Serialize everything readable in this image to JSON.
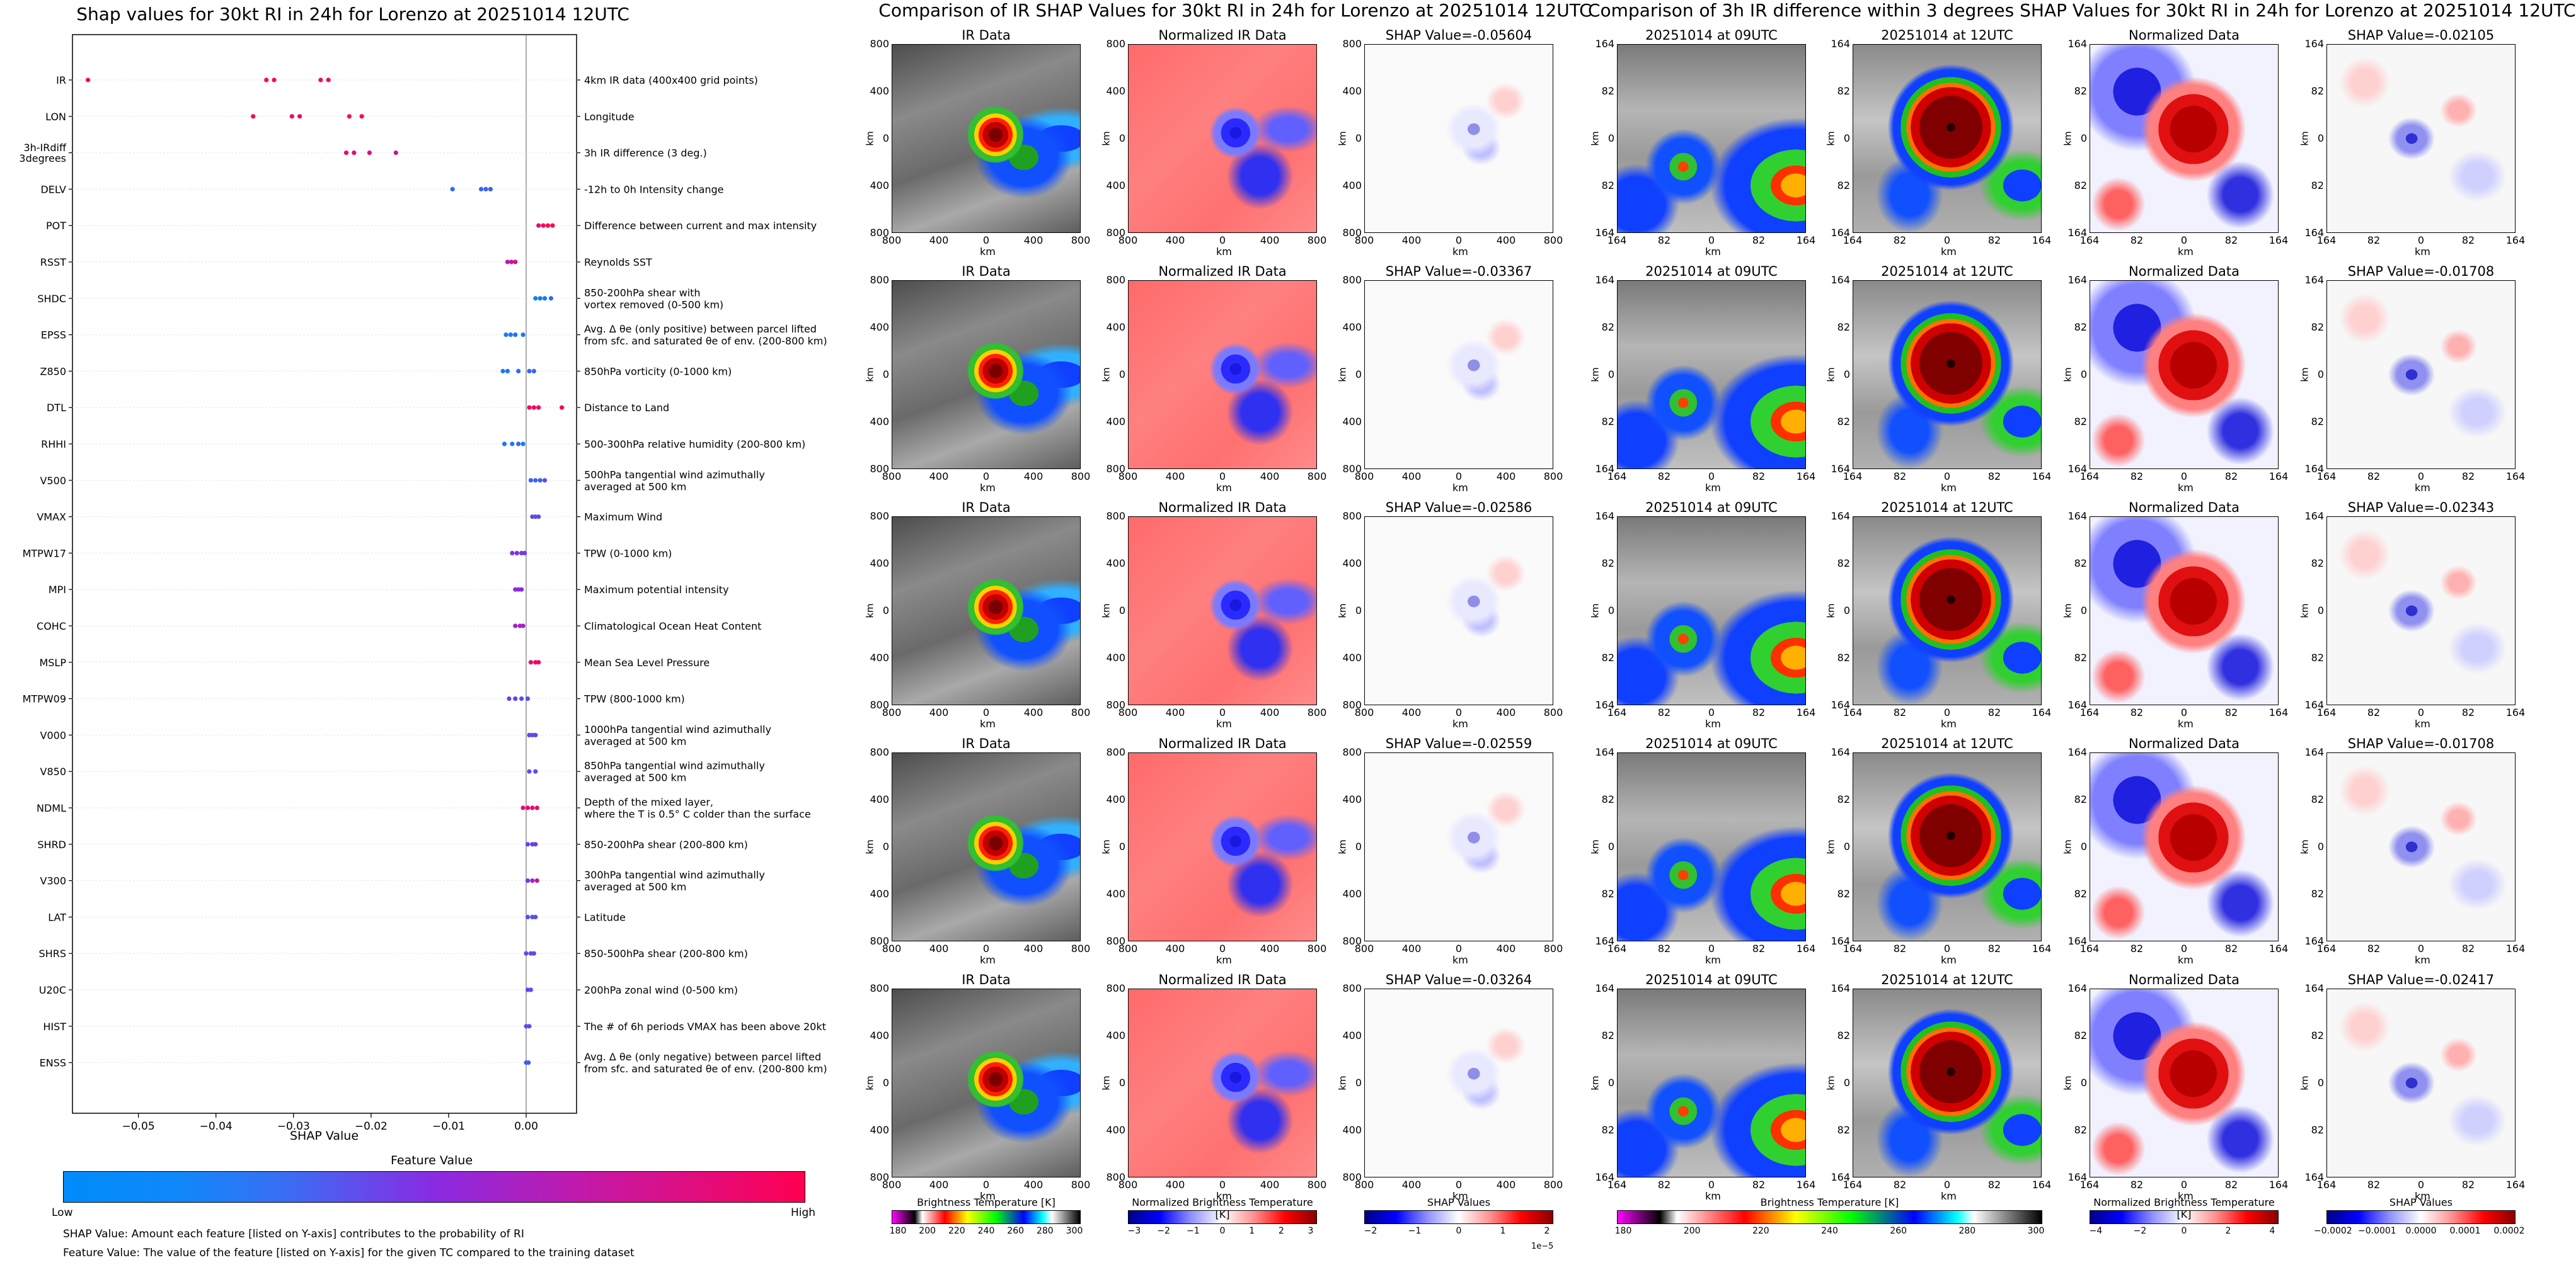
{
  "left": {
    "title": "Shap values for 30kt RI in 24h for Lorenzo at 20251014 12UTC",
    "xlabel": "SHAP Value",
    "x_ticks": [
      "−0.05",
      "−0.04",
      "−0.03",
      "−0.02",
      "−0.01",
      "0.00"
    ],
    "feature_value_title": "Feature Value",
    "low_label": "Low",
    "high_label": "High",
    "note1": "SHAP Value: Amount each feature [listed on Y-axis] contributes to the probability of RI",
    "note2": "Feature Value: The value of the feature [listed on Y-axis] for the given TC compared to the training dataset",
    "colors": {
      "low": "#1e88e5",
      "mid": "#8a2be2",
      "high": "#ff0052"
    }
  },
  "middle": {
    "title": "Comparison of IR SHAP Values for 30kt RI in 24h for Lorenzo at 20251014 12UTC",
    "col_titles": [
      "IR Data",
      "Normalized IR Data"
    ],
    "shap_titles": [
      "SHAP Value=-0.05604",
      "SHAP Value=-0.03367",
      "SHAP Value=-0.02586",
      "SHAP Value=-0.02559",
      "SHAP Value=-0.03264"
    ],
    "y_ticks": [
      "800",
      "400",
      "0",
      "400",
      "800"
    ],
    "x_ticks": [
      "800",
      "400",
      "0",
      "400",
      "800"
    ],
    "axis_label": "km",
    "cbar_labels": [
      "Brightness Temperature [K]",
      "Normalized Brightness Temperature [K]",
      "SHAP Values"
    ],
    "cbar1_ticks": [
      "180",
      "200",
      "220",
      "240",
      "260",
      "280",
      "300"
    ],
    "cbar2_ticks": [
      "−3",
      "−2",
      "−1",
      "0",
      "1",
      "2",
      "3"
    ],
    "cbar3_ticks": [
      "−2",
      "−1",
      "0",
      "1",
      "2"
    ],
    "cbar3_exp": "1e−5"
  },
  "right": {
    "title": "Comparison of 3h IR difference within 3 degrees SHAP Values for 30kt RI in 24h for Lorenzo at 20251014 12UTC",
    "col_titles": [
      "20251014 at 09UTC",
      "20251014 at 12UTC",
      "Normalized Data"
    ],
    "shap_titles": [
      "SHAP Value=-0.02105",
      "SHAP Value=-0.01708",
      "SHAP Value=-0.02343",
      "SHAP Value=-0.01708",
      "SHAP Value=-0.02417"
    ],
    "y_ticks": [
      "164",
      "82",
      "0",
      "82",
      "164"
    ],
    "x_ticks": [
      "164",
      "82",
      "0",
      "82",
      "164"
    ],
    "axis_label": "km",
    "cbar_labels": [
      "Brightness Temperature [K]",
      "Normalized Brightness Temperature [K]",
      "SHAP Values"
    ],
    "cbar1_ticks": [
      "180",
      "200",
      "220",
      "240",
      "260",
      "280",
      "300"
    ],
    "cbar2_ticks": [
      "−4",
      "−2",
      "0",
      "2",
      "4"
    ],
    "cbar3_ticks": [
      "−0.0002",
      "−0.0001",
      "0.0000",
      "0.0001",
      "0.0002"
    ]
  },
  "chart_data": {
    "type": "scatter",
    "title": "Shap values for 30kt RI in 24h for Lorenzo at 20251014 12UTC",
    "xlabel": "SHAP Value",
    "xlim": [
      -0.0585,
      0.0065
    ],
    "features": [
      {
        "name": "IR",
        "desc": "4km IR data (400x400 grid points)",
        "points": [
          [
            -0.0565,
            1.0
          ],
          [
            -0.0335,
            1.0
          ],
          [
            -0.0325,
            1.0
          ],
          [
            -0.0265,
            0.95
          ],
          [
            -0.0255,
            0.95
          ]
        ]
      },
      {
        "name": "LON",
        "desc": "Longitude",
        "points": [
          [
            -0.0352,
            1.0
          ],
          [
            -0.0302,
            0.95
          ],
          [
            -0.0292,
            0.95
          ],
          [
            -0.0228,
            1.0
          ],
          [
            -0.0212,
            1.0
          ]
        ]
      },
      {
        "name": "3h-IRdiff\n3degrees",
        "desc": "3h IR difference (3 deg.)",
        "points": [
          [
            -0.0232,
            0.9
          ],
          [
            -0.0222,
            0.9
          ],
          [
            -0.0202,
            0.85
          ],
          [
            -0.0168,
            0.75
          ]
        ]
      },
      {
        "name": "DELV",
        "desc": "-12h to 0h Intensity change",
        "points": [
          [
            -0.0095,
            0.15
          ],
          [
            -0.0058,
            0.2
          ],
          [
            -0.0052,
            0.25
          ],
          [
            -0.0046,
            0.2
          ]
        ]
      },
      {
        "name": "POT",
        "desc": "Difference between current and max intensity",
        "points": [
          [
            0.0016,
            0.9
          ],
          [
            0.0022,
            0.95
          ],
          [
            0.0028,
            1.0
          ],
          [
            0.0034,
            1.0
          ]
        ]
      },
      {
        "name": "RSST",
        "desc": "Reynolds SST",
        "points": [
          [
            -0.0024,
            0.7
          ],
          [
            -0.0019,
            0.75
          ],
          [
            -0.0014,
            0.8
          ]
        ]
      },
      {
        "name": "SHDC",
        "desc": "850-200hPa shear with\nvortex removed (0-500 km)",
        "points": [
          [
            0.0012,
            0.05
          ],
          [
            0.0018,
            0.1
          ],
          [
            0.0024,
            0.1
          ],
          [
            0.0032,
            0.15
          ]
        ]
      },
      {
        "name": "EPSS",
        "desc": "Avg. Δ θe (only positive) between parcel lifted\nfrom sfc. and saturated θe of env. (200-800 km)",
        "points": [
          [
            -0.0026,
            0.1
          ],
          [
            -0.002,
            0.1
          ],
          [
            -0.0014,
            0.15
          ],
          [
            -0.0004,
            0.1
          ]
        ]
      },
      {
        "name": "Z850",
        "desc": "850hPa vorticity (0-1000 km)",
        "points": [
          [
            -0.003,
            0.1
          ],
          [
            -0.0024,
            0.1
          ],
          [
            -0.001,
            0.15
          ],
          [
            0.0004,
            0.2
          ],
          [
            0.001,
            0.2
          ]
        ]
      },
      {
        "name": "DTL",
        "desc": "Distance to Land",
        "points": [
          [
            0.0004,
            0.95
          ],
          [
            0.001,
            0.95
          ],
          [
            0.0016,
            1.0
          ],
          [
            0.0046,
            1.0
          ]
        ]
      },
      {
        "name": "RHHI",
        "desc": "500-300hPa relative humidity (200-800 km)",
        "points": [
          [
            -0.0028,
            0.1
          ],
          [
            -0.0018,
            0.1
          ],
          [
            -0.001,
            0.15
          ],
          [
            -0.0004,
            0.1
          ]
        ]
      },
      {
        "name": "V500",
        "desc": "500hPa tangential wind azimuthally\naveraged at 500 km",
        "points": [
          [
            0.0006,
            0.2
          ],
          [
            0.0012,
            0.2
          ],
          [
            0.0018,
            0.25
          ],
          [
            0.0024,
            0.3
          ]
        ]
      },
      {
        "name": "VMAX",
        "desc": "Maximum Wind",
        "points": [
          [
            0.0008,
            0.3
          ],
          [
            0.0012,
            0.3
          ],
          [
            0.0016,
            0.35
          ]
        ]
      },
      {
        "name": "MTPW17",
        "desc": "TPW (0-1000 km)",
        "points": [
          [
            -0.0018,
            0.45
          ],
          [
            -0.0012,
            0.45
          ],
          [
            -0.0006,
            0.4
          ],
          [
            -0.0002,
            0.4
          ]
        ]
      },
      {
        "name": "MPI",
        "desc": "Maximum potential intensity",
        "points": [
          [
            -0.0014,
            0.5
          ],
          [
            -0.001,
            0.5
          ],
          [
            -0.0006,
            0.5
          ]
        ]
      },
      {
        "name": "COHC",
        "desc": "Climatological Ocean Heat Content",
        "points": [
          [
            -0.0014,
            0.6
          ],
          [
            -0.0008,
            0.6
          ],
          [
            -0.0004,
            0.65
          ]
        ]
      },
      {
        "name": "MSLP",
        "desc": "Mean Sea Level Pressure",
        "points": [
          [
            0.0006,
            0.9
          ],
          [
            0.0012,
            0.95
          ],
          [
            0.0016,
            0.95
          ]
        ]
      },
      {
        "name": "MTPW09",
        "desc": "TPW (800-1000 km)",
        "points": [
          [
            -0.0022,
            0.4
          ],
          [
            -0.0014,
            0.4
          ],
          [
            -0.0006,
            0.35
          ],
          [
            0.0002,
            0.3
          ]
        ]
      },
      {
        "name": "V000",
        "desc": "1000hPa tangential wind azimuthally\naveraged at 500 km",
        "points": [
          [
            0.0004,
            0.3
          ],
          [
            0.0008,
            0.3
          ],
          [
            0.0012,
            0.35
          ]
        ]
      },
      {
        "name": "V850",
        "desc": "850hPa tangential wind azimuthally\naveraged at 500 km",
        "points": [
          [
            0.0004,
            0.3
          ],
          [
            0.0012,
            0.35
          ]
        ]
      },
      {
        "name": "NDML",
        "desc": "Depth of the mixed layer,\nwhere the T is 0.5° C colder than the surface",
        "points": [
          [
            -0.0004,
            0.9
          ],
          [
            0.0002,
            0.85
          ],
          [
            0.0008,
            0.9
          ],
          [
            0.0014,
            0.95
          ]
        ]
      },
      {
        "name": "SHRD",
        "desc": "850-200hPa shear (200-800 km)",
        "points": [
          [
            0.0002,
            0.35
          ],
          [
            0.0008,
            0.4
          ],
          [
            0.0012,
            0.4
          ]
        ]
      },
      {
        "name": "V300",
        "desc": "300hPa tangential wind azimuthally\naveraged at 500 km",
        "points": [
          [
            0.0002,
            0.45
          ],
          [
            0.0008,
            0.55
          ],
          [
            0.0014,
            0.75
          ]
        ]
      },
      {
        "name": "LAT",
        "desc": "Latitude",
        "points": [
          [
            0.0002,
            0.3
          ],
          [
            0.0008,
            0.3
          ],
          [
            0.0012,
            0.35
          ]
        ]
      },
      {
        "name": "SHRS",
        "desc": "850-500hPa shear (200-800 km)",
        "points": [
          [
            0.0,
            0.3
          ],
          [
            0.0006,
            0.3
          ],
          [
            0.001,
            0.35
          ]
        ]
      },
      {
        "name": "U20C",
        "desc": "200hPa zonal wind (0-500 km)",
        "points": [
          [
            0.0002,
            0.35
          ],
          [
            0.0006,
            0.35
          ]
        ]
      },
      {
        "name": "HIST",
        "desc": "The # of 6h periods VMAX has been above 20kt",
        "points": [
          [
            0.0,
            0.3
          ],
          [
            0.0004,
            0.3
          ]
        ]
      },
      {
        "name": "ENSS",
        "desc": "Avg. Δ θe (only negative) between parcel lifted\nfrom sfc. and saturated θe of env. (200-800 km)",
        "points": [
          [
            0.0,
            0.25
          ],
          [
            0.0003,
            0.25
          ]
        ]
      }
    ]
  }
}
